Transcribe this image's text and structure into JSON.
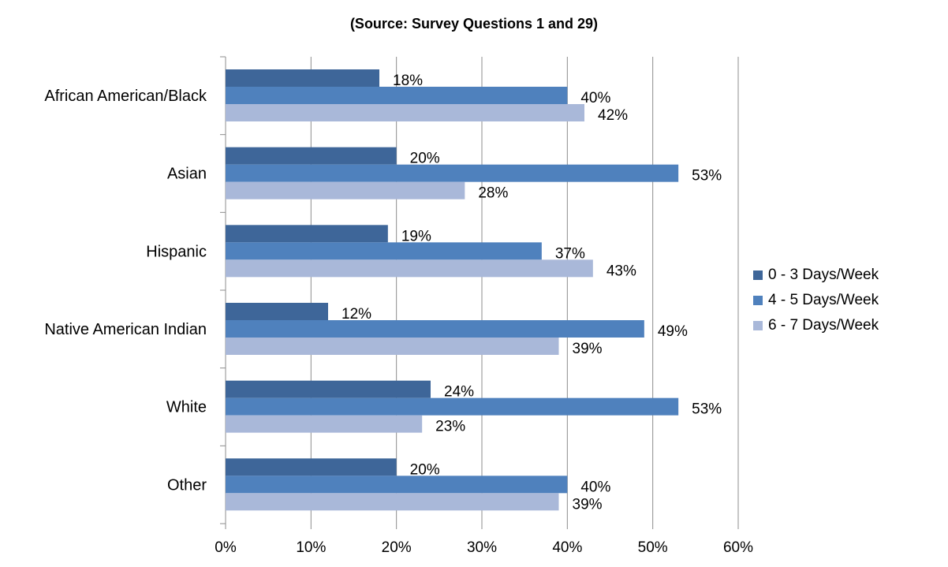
{
  "chart_data": {
    "type": "bar",
    "orientation": "horizontal",
    "subtitle": "(Source: Survey Questions 1 and 29)",
    "categories": [
      "African American/Black",
      "Asian",
      "Hispanic",
      "Native American Indian",
      "White",
      "Other"
    ],
    "series": [
      {
        "name": "0 - 3 Days/Week",
        "color": "#3e6699",
        "values": [
          18,
          20,
          19,
          12,
          24,
          20
        ]
      },
      {
        "name": "4 - 5 Days/Week",
        "color": "#4f81bd",
        "values": [
          40,
          53,
          37,
          49,
          53,
          40
        ]
      },
      {
        "name": "6 - 7 Days/Week",
        "color": "#a9b8d9",
        "values": [
          42,
          28,
          43,
          39,
          23,
          39
        ]
      }
    ],
    "value_labels": [
      [
        "18%",
        "20%",
        "19%",
        "12%",
        "24%",
        "20%"
      ],
      [
        "40%",
        "53%",
        "37%",
        "49%",
        "53%",
        "40%"
      ],
      [
        "42%",
        "28%",
        "43%",
        "39%",
        "23%",
        "39%"
      ]
    ],
    "xlim": [
      0,
      60
    ],
    "xticks": [
      0,
      10,
      20,
      30,
      40,
      50,
      60
    ],
    "xtick_labels": [
      "0%",
      "10%",
      "20%",
      "30%",
      "40%",
      "50%",
      "60%"
    ],
    "gridlines": true,
    "legend_position": "right"
  }
}
